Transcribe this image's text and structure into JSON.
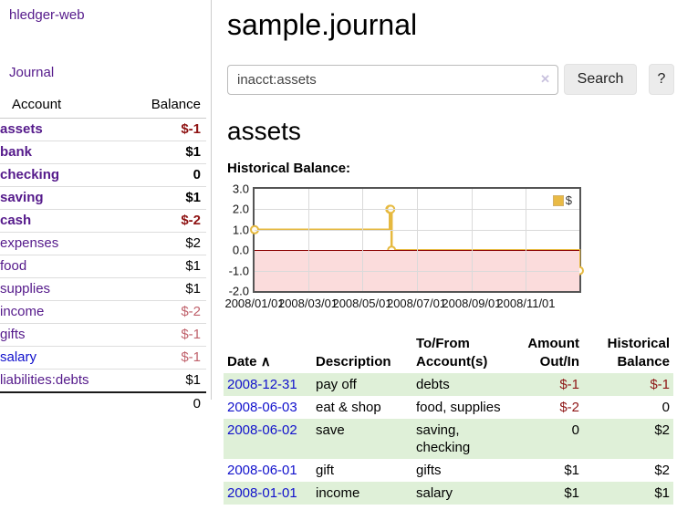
{
  "colors": {
    "link_purple": "#551a8b",
    "link_blue": "#1111cc",
    "negative_strong": "#8e1212",
    "negative_muted": "#c0626c",
    "register_negative": "#8e1515",
    "row_green": "#dff0d8",
    "chart_line_gold": "#e6b93f",
    "chart_negative_region": "#fbdcdc",
    "chart_zero_line": "#8b0000"
  },
  "sidebar": {
    "brand": "hledger-web",
    "journal_link": "Journal",
    "table": {
      "account_header": "Account",
      "balance_header": "Balance",
      "rows": [
        {
          "name": "assets",
          "balance": "$-1"
        },
        {
          "name": "bank",
          "balance": "$1"
        },
        {
          "name": "checking",
          "balance": "0"
        },
        {
          "name": "saving",
          "balance": "$1"
        },
        {
          "name": "cash",
          "balance": "$-2"
        },
        {
          "name": "expenses",
          "balance": "$2"
        },
        {
          "name": "food",
          "balance": "$1"
        },
        {
          "name": "supplies",
          "balance": "$1"
        },
        {
          "name": "income",
          "balance": "$-2"
        },
        {
          "name": "gifts",
          "balance": "$-1"
        },
        {
          "name": "salary",
          "balance": "$-1"
        },
        {
          "name": "liabilities:debts",
          "balance": "$1"
        }
      ],
      "total": "0"
    }
  },
  "main": {
    "title": "sample.journal",
    "search": {
      "value": "inacct:assets",
      "clear_icon": "✕",
      "search_button": "Search",
      "help_button": "?"
    },
    "section_heading": "assets",
    "chart_heading": "Historical Balance:"
  },
  "chart_data": {
    "type": "line",
    "line_style": "step-after",
    "title": "Historical Balance",
    "series": [
      {
        "name": "$",
        "color": "#e6b93f",
        "points": [
          {
            "date": "2008-01-01",
            "day": 0,
            "value": 1
          },
          {
            "date": "2008-06-01",
            "day": 152,
            "value": 2
          },
          {
            "date": "2008-06-02",
            "day": 153,
            "value": 2
          },
          {
            "date": "2008-06-03",
            "day": 154,
            "value": 0
          },
          {
            "date": "2008-12-31",
            "day": 365,
            "value": -1
          }
        ]
      }
    ],
    "x_tick_labels": [
      "2008/01/01",
      "2008/03/01",
      "2008/05/01",
      "2008/07/01",
      "2008/09/01",
      "2008/11/01"
    ],
    "x_tick_days": [
      0,
      60,
      121,
      182,
      244,
      305
    ],
    "x_range_days": [
      0,
      365
    ],
    "y_ticks": [
      3,
      2,
      1,
      0,
      -1,
      -2
    ],
    "ylim": [
      -2,
      3
    ],
    "legend": {
      "label": "$",
      "position": "top-right"
    },
    "grid": true,
    "negative_region": true
  },
  "register": {
    "headers": {
      "date": "Date",
      "sort_icon": "∧",
      "description": "Description",
      "accounts": "To/From Account(s)",
      "amount": "Amount Out/In",
      "balance": "Historical Balance"
    },
    "rows": [
      {
        "date": "2008-12-31",
        "description": "pay off",
        "accounts": "debts",
        "amount": "$-1",
        "balance": "$-1"
      },
      {
        "date": "2008-06-03",
        "description": "eat & shop",
        "accounts": "food, supplies",
        "amount": "$-2",
        "balance": "0"
      },
      {
        "date": "2008-06-02",
        "description": "save",
        "accounts": "saving, checking",
        "amount": "0",
        "balance": "$2"
      },
      {
        "date": "2008-06-01",
        "description": "gift",
        "accounts": "gifts",
        "amount": "$1",
        "balance": "$2"
      },
      {
        "date": "2008-01-01",
        "description": "income",
        "accounts": "salary",
        "amount": "$1",
        "balance": "$1"
      }
    ]
  }
}
